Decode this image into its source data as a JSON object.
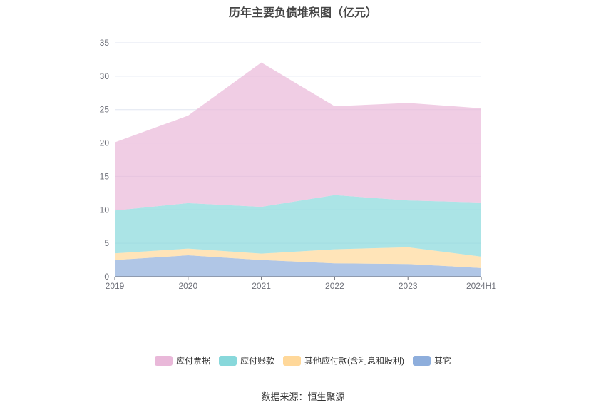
{
  "chart_data": {
    "type": "area",
    "stacked": true,
    "title": "历年主要负债堆积图（亿元）",
    "categories": [
      "2019",
      "2020",
      "2021",
      "2022",
      "2023",
      "2024H1"
    ],
    "ylim": [
      0,
      35
    ],
    "yticks": [
      0,
      5,
      10,
      15,
      20,
      25,
      30,
      35
    ],
    "grid": true,
    "legend_placement": "bottom",
    "series": [
      {
        "name": "其它",
        "color": "#8eaedc",
        "values": [
          2.5,
          3.2,
          2.5,
          2.0,
          1.9,
          1.3
        ]
      },
      {
        "name": "其他应付款(含利息和股利)",
        "color": "#ffd89a",
        "values": [
          1.0,
          1.0,
          0.95,
          2.1,
          2.5,
          1.7
        ]
      },
      {
        "name": "应付账款",
        "color": "#88d8db",
        "values": [
          6.4,
          6.8,
          7.0,
          8.1,
          7.0,
          8.1
        ]
      },
      {
        "name": "应付票据",
        "color": "#e9b8d9",
        "values": [
          10.2,
          13.1,
          21.6,
          13.3,
          14.6,
          14.1
        ]
      }
    ],
    "legend_order": [
      3,
      2,
      1,
      0
    ]
  },
  "source": "数据来源：恒生聚源"
}
